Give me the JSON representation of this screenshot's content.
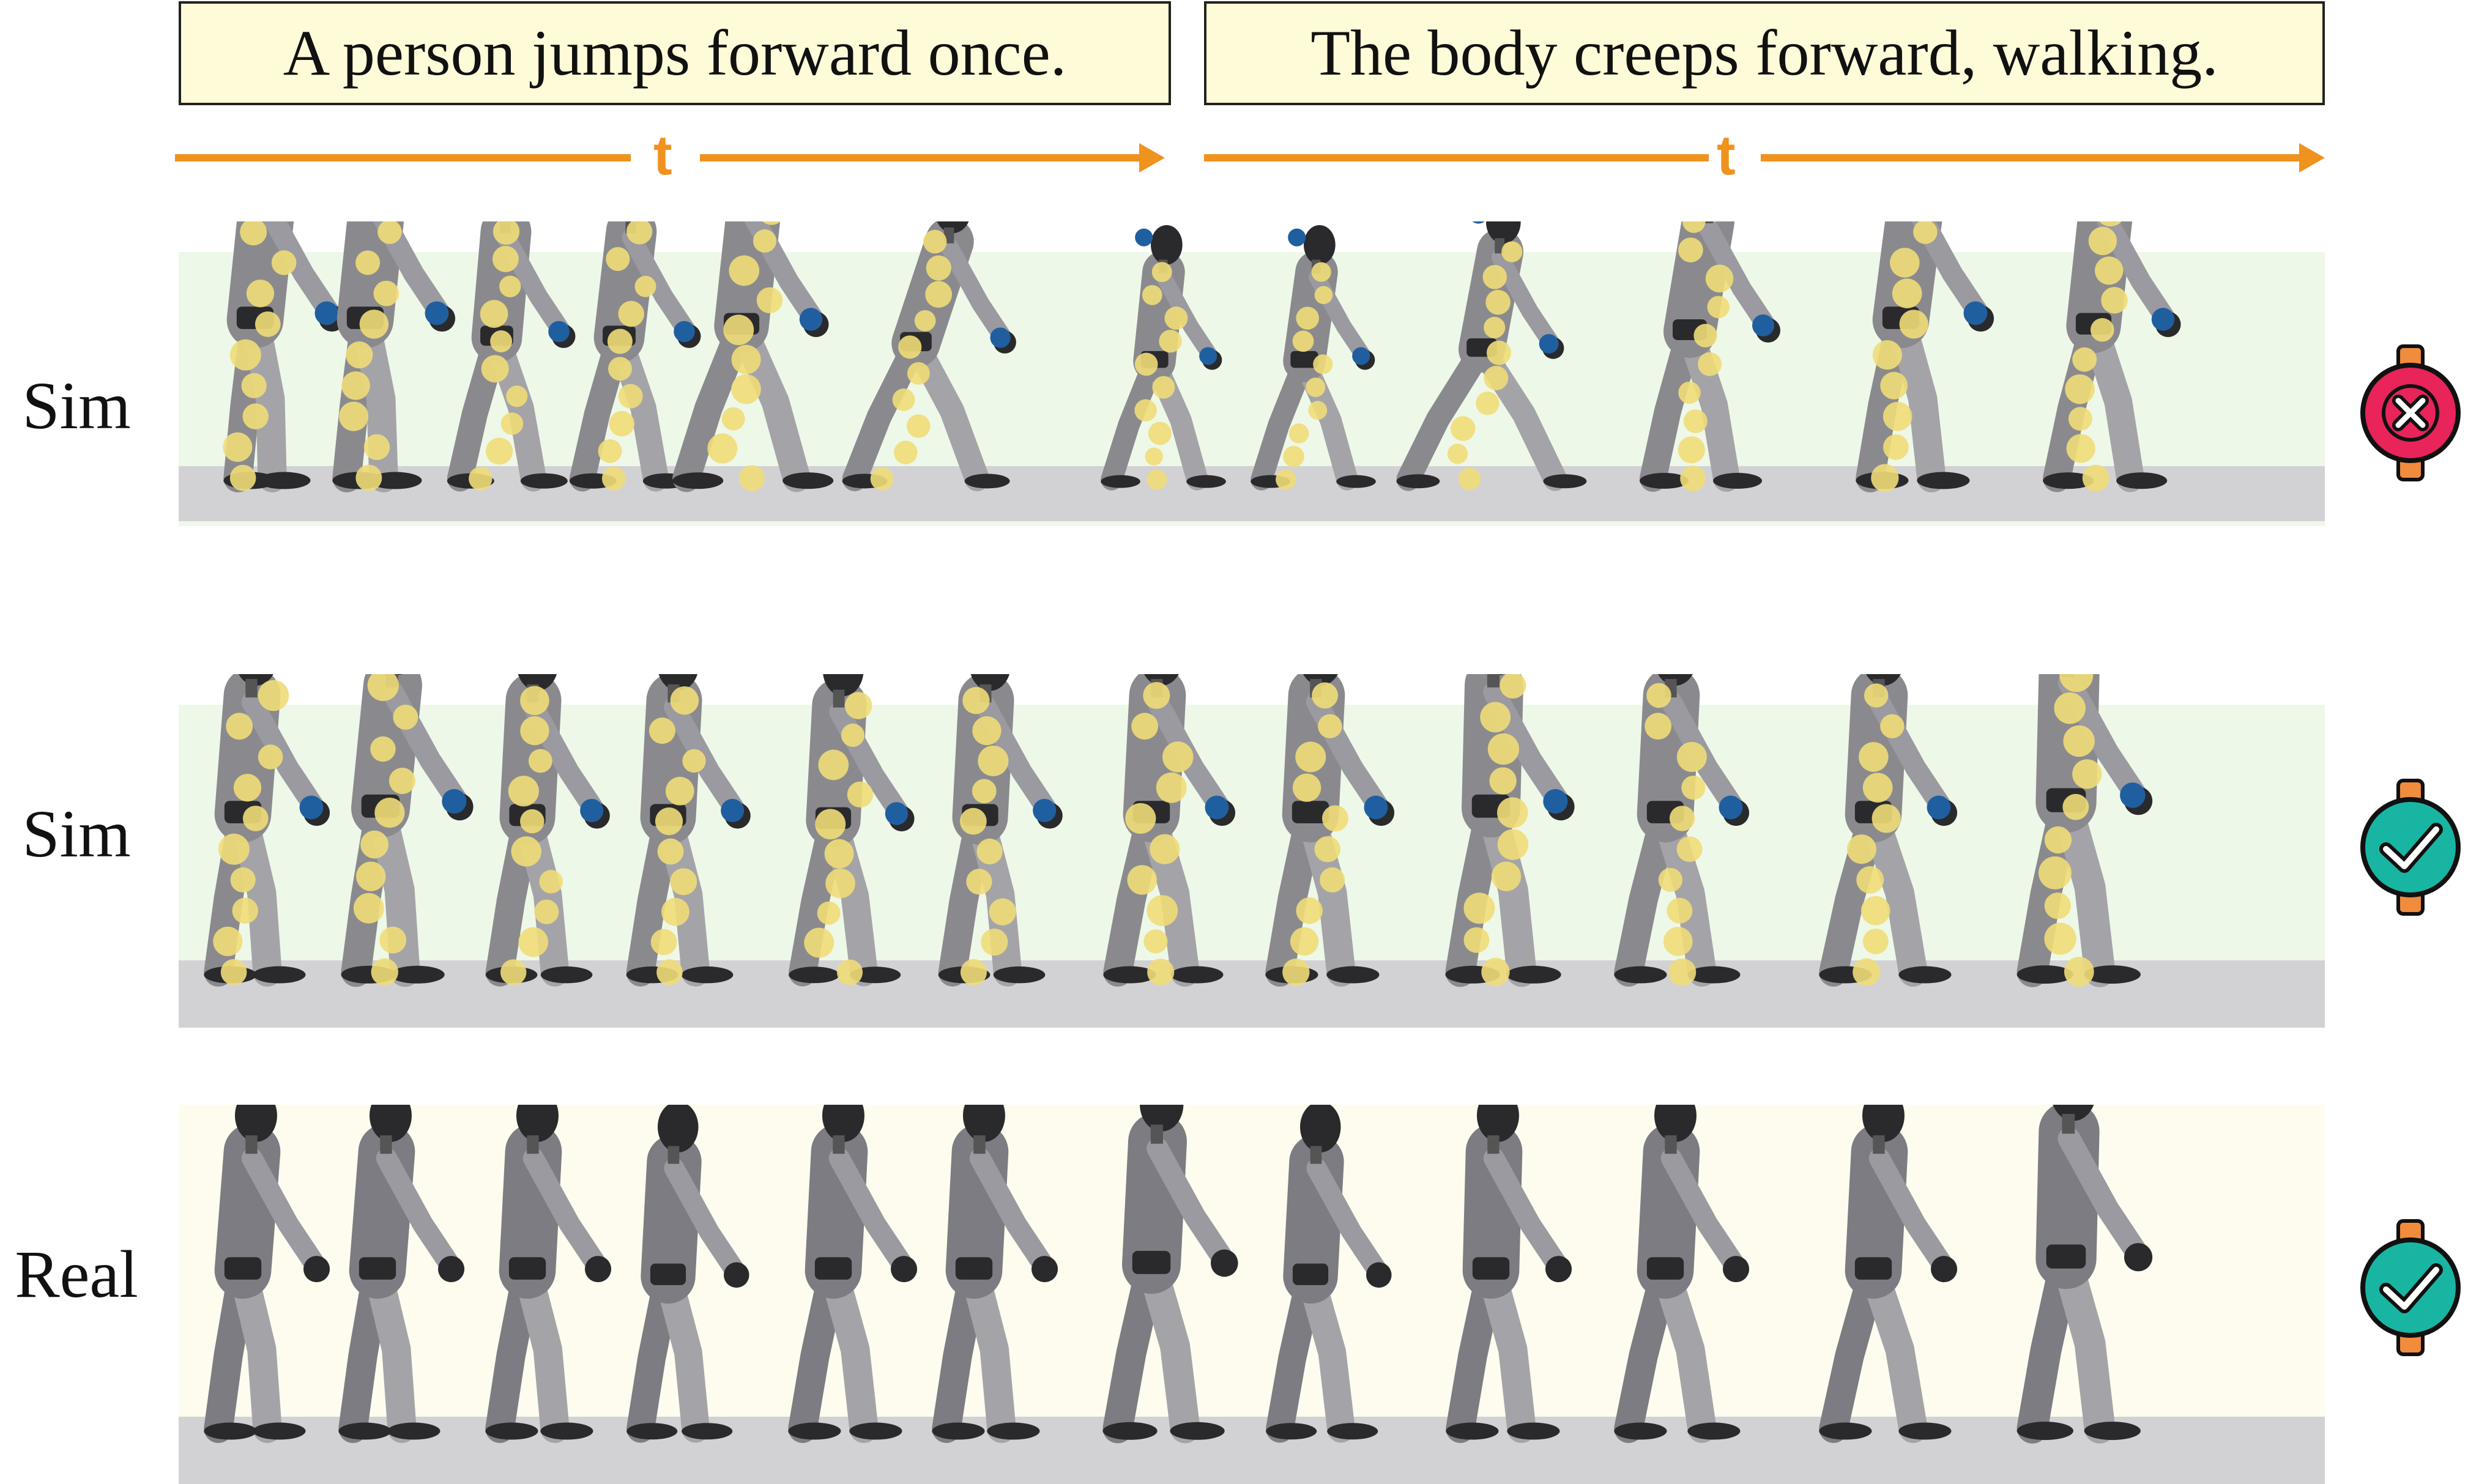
{
  "captions": {
    "left": "A person jumps forward once.",
    "right": "The body creeps forward, walking."
  },
  "timeline": {
    "symbol": "t",
    "color": "#f0921e"
  },
  "rows": [
    {
      "label": "Sim",
      "status": "fail-icon",
      "status_color": "#e8245a"
    },
    {
      "label": "Sim",
      "status": "check-icon",
      "status_color": "#19b5a3"
    },
    {
      "label": "Real",
      "status": "check-icon",
      "status_color": "#19b5a3"
    }
  ],
  "colors": {
    "sim_background": "#eef8e8",
    "real_background": "#fdfcee",
    "ground": "#d2d2d4",
    "robot": "#8a8a8e",
    "robot_dark": "#2a2a2c",
    "target_marker": "#1f5fa0",
    "trace_marker": "#f0dc78",
    "band": "#f08c3c"
  }
}
